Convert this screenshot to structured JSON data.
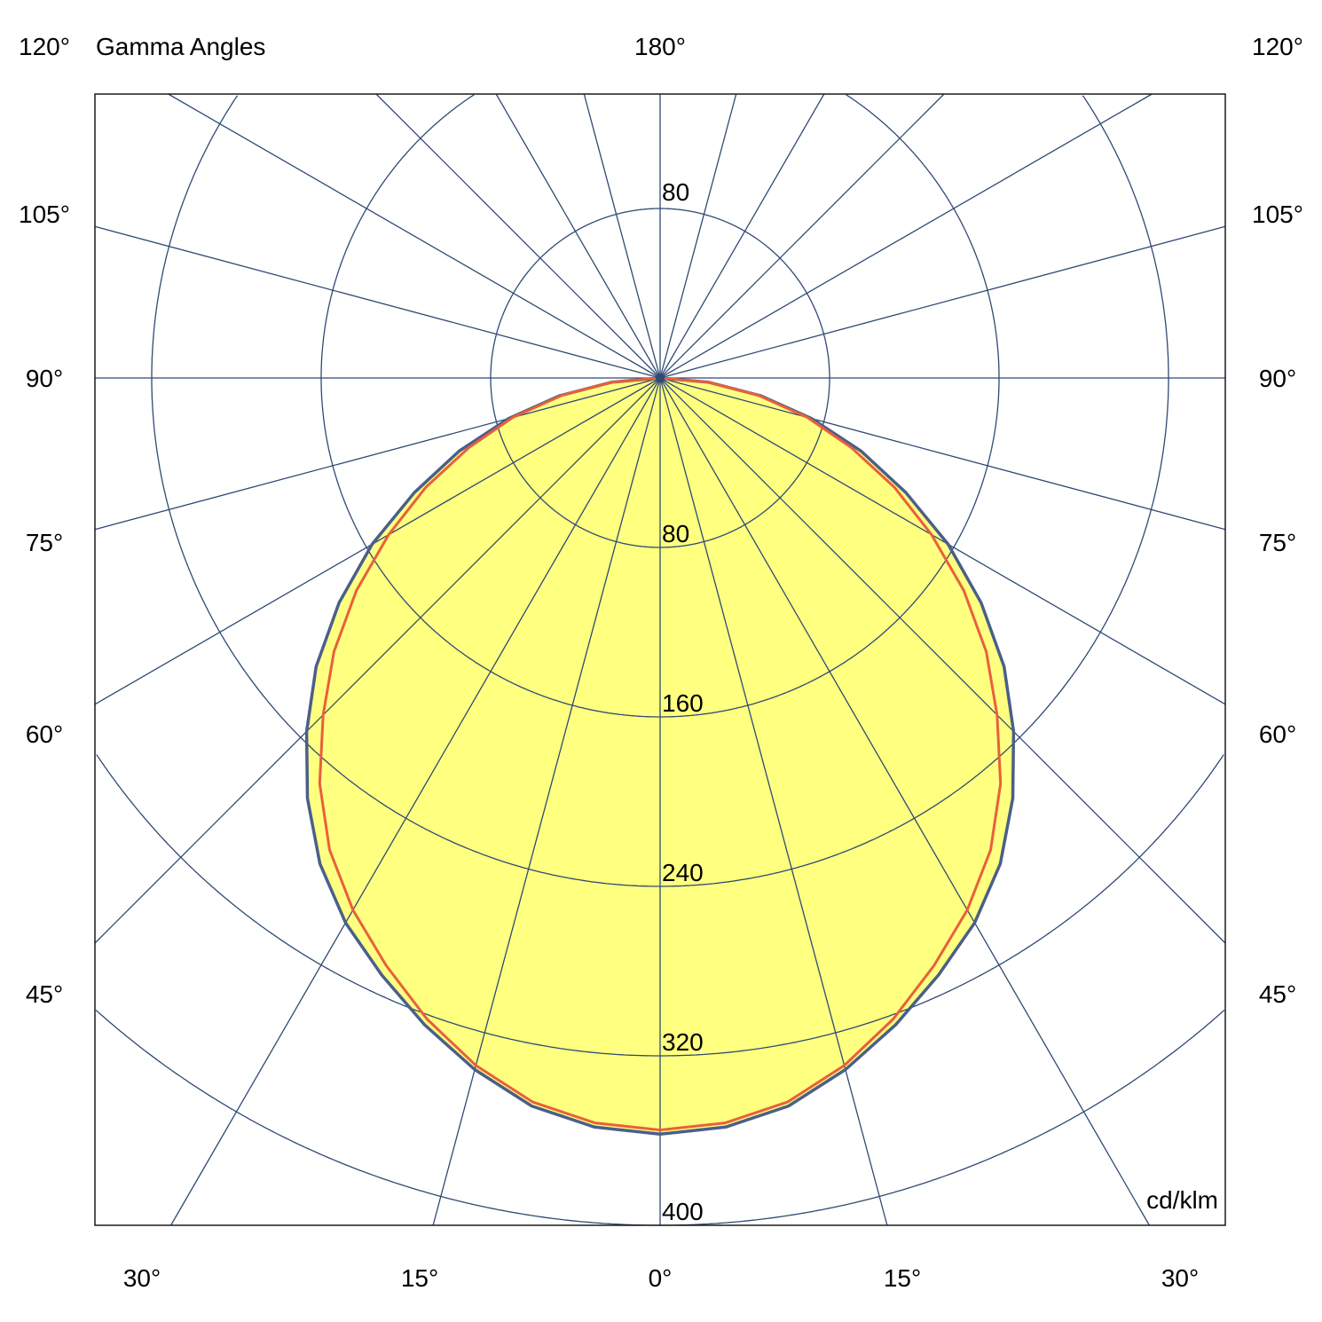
{
  "chart_data": {
    "type": "polar",
    "title": "Gamma Angles",
    "unit": "cd/klm",
    "top_angle_label": "180°",
    "side_angle_labels": [
      "120°",
      "105°",
      "90°",
      "75°",
      "60°",
      "45°"
    ],
    "bottom_angle_labels": [
      "30°",
      "15°",
      "0°",
      "15°",
      "30°"
    ],
    "radial_ticks": [
      80,
      160,
      240,
      320,
      400
    ],
    "radial_tick_labels": [
      "80",
      "160",
      "240",
      "320",
      "400"
    ],
    "top_radial_label": "80",
    "radial_max": 400,
    "grid": true,
    "grid_angle_step_deg": 15,
    "gamma_deg": [
      0,
      5,
      10,
      15,
      20,
      25,
      30,
      35,
      40,
      45,
      50,
      55,
      60,
      65,
      70,
      75,
      80,
      85,
      90
    ],
    "series": [
      {
        "values": [
          357,
          355,
          349,
          338,
          325,
          311,
          297,
          280,
          259,
          236,
          212,
          185,
          157,
          128,
          101,
          74,
          48,
          23,
          0
        ],
        "color": "#4a5f8a",
        "fill": "#ffff80"
      },
      {
        "values": [
          355,
          353,
          347,
          336,
          322,
          306,
          290,
          272,
          250,
          225,
          201,
          175,
          148,
          122,
          96,
          72,
          47,
          23,
          0
        ],
        "color": "#e8603c"
      }
    ],
    "colors": {
      "grid": "#2f4a73",
      "frame": "#1a1a1a"
    }
  }
}
